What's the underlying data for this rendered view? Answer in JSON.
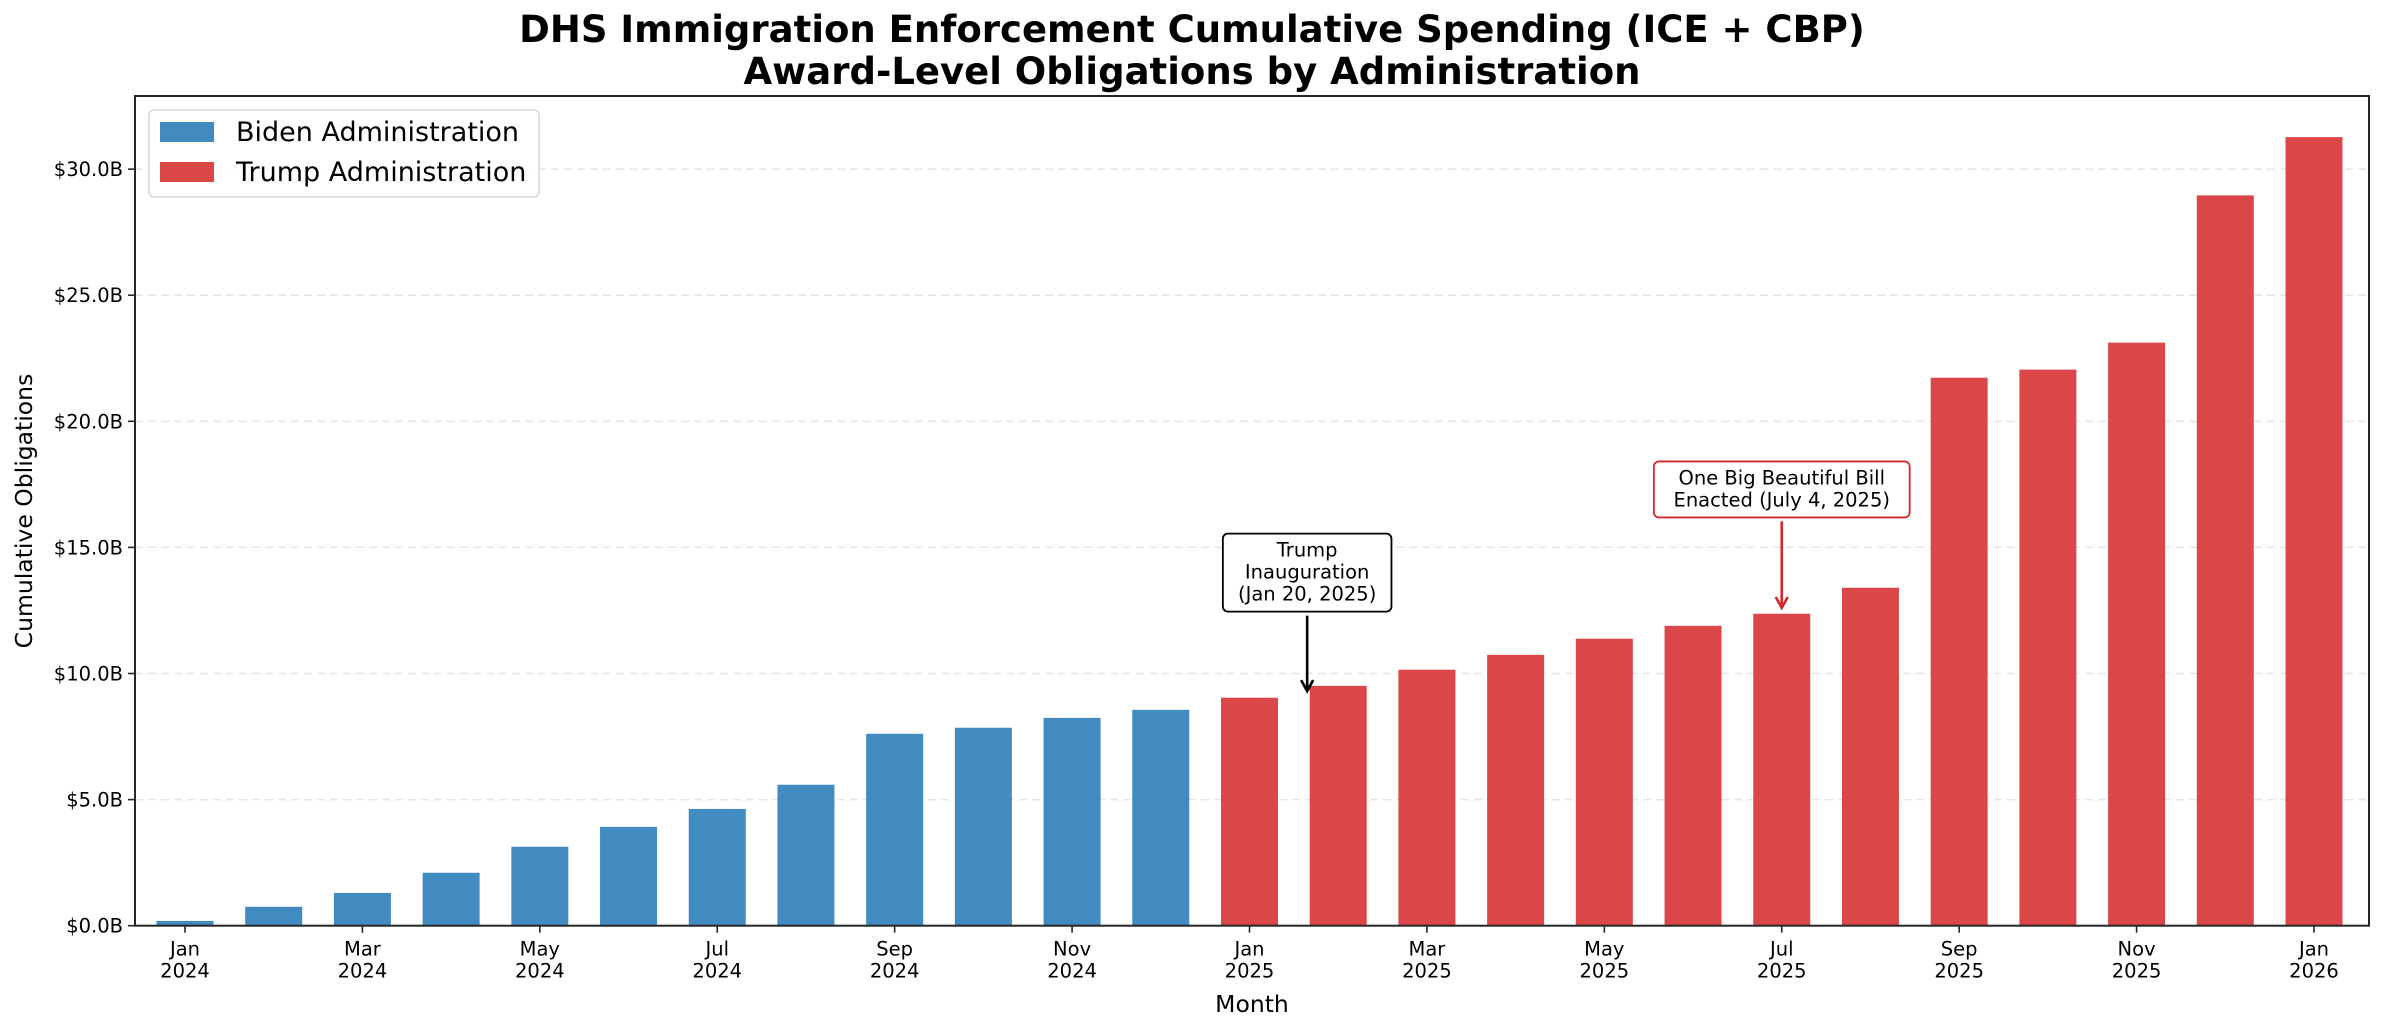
{
  "chart_data": {
    "type": "bar",
    "title": "DHS Immigration Enforcement Cumulative Spending (ICE + CBP)",
    "subtitle": "Award-Level Obligations by Administration",
    "xlabel": "Month",
    "ylabel": "Cumulative Obligations",
    "ylim": [
      0,
      32.9
    ],
    "y_unit": "billions USD",
    "yticks": [
      0,
      5,
      10,
      15,
      20,
      25,
      30
    ],
    "ytick_labels": [
      "$0.0B",
      "$5.0B",
      "$10.0B",
      "$15.0B",
      "$20.0B",
      "$25.0B",
      "$30.0B"
    ],
    "grid": "y, dashed",
    "legend_position": "top-left",
    "categories": [
      "Jan 2024",
      "Feb 2024",
      "Mar 2024",
      "Apr 2024",
      "May 2024",
      "Jun 2024",
      "Jul 2024",
      "Aug 2024",
      "Sep 2024",
      "Oct 2024",
      "Nov 2024",
      "Dec 2024",
      "Jan 2025",
      "Feb 2025",
      "Mar 2025",
      "Apr 2025",
      "May 2025",
      "Jun 2025",
      "Jul 2025",
      "Aug 2025",
      "Sep 2025",
      "Oct 2025",
      "Nov 2025",
      "Dec 2025",
      "Jan 2026"
    ],
    "xtick_indices": [
      0,
      2,
      4,
      6,
      8,
      10,
      12,
      14,
      16,
      18,
      20,
      22,
      24
    ],
    "xtick_labels": [
      [
        "Jan",
        "2024"
      ],
      [
        "Mar",
        "2024"
      ],
      [
        "May",
        "2024"
      ],
      [
        "Jul",
        "2024"
      ],
      [
        "Sep",
        "2024"
      ],
      [
        "Nov",
        "2024"
      ],
      [
        "Jan",
        "2025"
      ],
      [
        "Mar",
        "2025"
      ],
      [
        "May",
        "2025"
      ],
      [
        "Jul",
        "2025"
      ],
      [
        "Sep",
        "2025"
      ],
      [
        "Nov",
        "2025"
      ],
      [
        "Jan",
        "2026"
      ]
    ],
    "series": [
      {
        "name": "Biden Administration",
        "color": "#428bc0",
        "start_index": 0,
        "values": [
          0.19,
          0.75,
          1.3,
          2.1,
          3.13,
          3.92,
          4.63,
          5.59,
          7.61,
          7.85,
          8.24,
          8.56
        ]
      },
      {
        "name": "Trump Administration",
        "color": "#db4749",
        "start_index": 12,
        "values": [
          9.04,
          9.51,
          10.15,
          10.74,
          11.38,
          11.89,
          12.37,
          13.4,
          21.73,
          22.05,
          23.12,
          28.96,
          31.27
        ]
      }
    ],
    "annotations": [
      {
        "lines": [
          "Trump",
          "Inauguration",
          "(Jan 20, 2025)"
        ],
        "date": "Jan 20, 2025",
        "target_index": 12.65,
        "target_value": 9.3,
        "text_value": 14.0,
        "color": "#000000"
      },
      {
        "lines": [
          "One Big Beautiful Bill",
          "Enacted (July 4, 2025)"
        ],
        "date": "July 4, 2025",
        "target_index": 18.0,
        "target_value": 12.6,
        "text_value": 17.3,
        "color": "#d62728"
      }
    ]
  }
}
